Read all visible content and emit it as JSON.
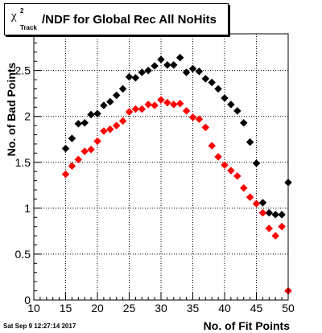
{
  "title": {
    "symbol": "χ",
    "superscript": "2",
    "subscript": "Track",
    "text": "/NDF for Global Rec All NoHits"
  },
  "datestamp": "Sat Sep  9 12:27:14 2017",
  "chart_data": {
    "type": "scatter",
    "title": "χ²Track/NDF for Global Rec All NoHits",
    "xlabel": "No. of Fit Points",
    "ylabel": "No. of Bad Points",
    "xlim": [
      10,
      50
    ],
    "ylim": [
      0,
      2.9
    ],
    "x_ticks": [
      "10",
      "15",
      "20",
      "25",
      "30",
      "35",
      "40",
      "45",
      "50"
    ],
    "y_ticks": [
      "0",
      "0.5",
      "1",
      "1.5",
      "2",
      "2.5"
    ],
    "grid": true,
    "series": [
      {
        "color": "#000000",
        "x": [
          15,
          16,
          17,
          18,
          19,
          20,
          21,
          22,
          23,
          24,
          25,
          26,
          27,
          28,
          29,
          30,
          31,
          32,
          33,
          34,
          35,
          36,
          37,
          38,
          39,
          40,
          41,
          42,
          43,
          44,
          45,
          46,
          47,
          48,
          49,
          50
        ],
        "y": [
          1.65,
          1.76,
          1.92,
          1.93,
          2.02,
          2.03,
          2.12,
          2.16,
          2.23,
          2.3,
          2.43,
          2.42,
          2.48,
          2.5,
          2.55,
          2.62,
          2.56,
          2.56,
          2.64,
          2.48,
          2.52,
          2.49,
          2.41,
          2.37,
          2.3,
          2.2,
          2.13,
          2.06,
          1.93,
          1.72,
          1.49,
          1.06,
          0.95,
          0.93,
          0.93,
          1.28
        ]
      },
      {
        "color": "#ff0000",
        "x": [
          15,
          16,
          17,
          18,
          19,
          20,
          21,
          22,
          23,
          24,
          25,
          26,
          27,
          28,
          29,
          30,
          31,
          32,
          33,
          34,
          35,
          36,
          37,
          38,
          39,
          40,
          41,
          42,
          43,
          44,
          45,
          46,
          47,
          48,
          49,
          50
        ],
        "y": [
          1.37,
          1.46,
          1.53,
          1.62,
          1.64,
          1.73,
          1.84,
          1.86,
          1.9,
          1.95,
          2.05,
          2.08,
          2.08,
          2.13,
          2.12,
          2.18,
          2.15,
          2.13,
          2.14,
          2.06,
          1.99,
          1.97,
          1.88,
          1.68,
          1.56,
          1.47,
          1.41,
          1.35,
          1.22,
          1.12,
          1.05,
          0.95,
          0.78,
          0.7,
          0.8,
          0.1
        ]
      }
    ]
  }
}
